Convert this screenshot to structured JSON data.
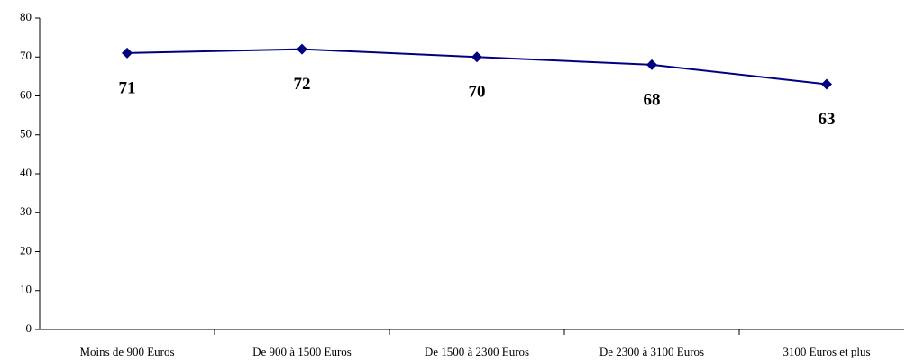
{
  "chart_data": {
    "type": "line",
    "categories": [
      "Moins de 900 Euros",
      "De 900 à 1500 Euros",
      "De 1500 à 2300 Euros",
      "De 2300 à 3100 Euros",
      "3100 Euros et plus"
    ],
    "series": [
      {
        "color": "#000080",
        "values": [
          71,
          72,
          70,
          68,
          63
        ]
      }
    ],
    "ylim": [
      0,
      80
    ],
    "yticks": [
      0,
      10,
      20,
      30,
      40,
      50,
      60,
      70,
      80
    ],
    "grid": false
  }
}
